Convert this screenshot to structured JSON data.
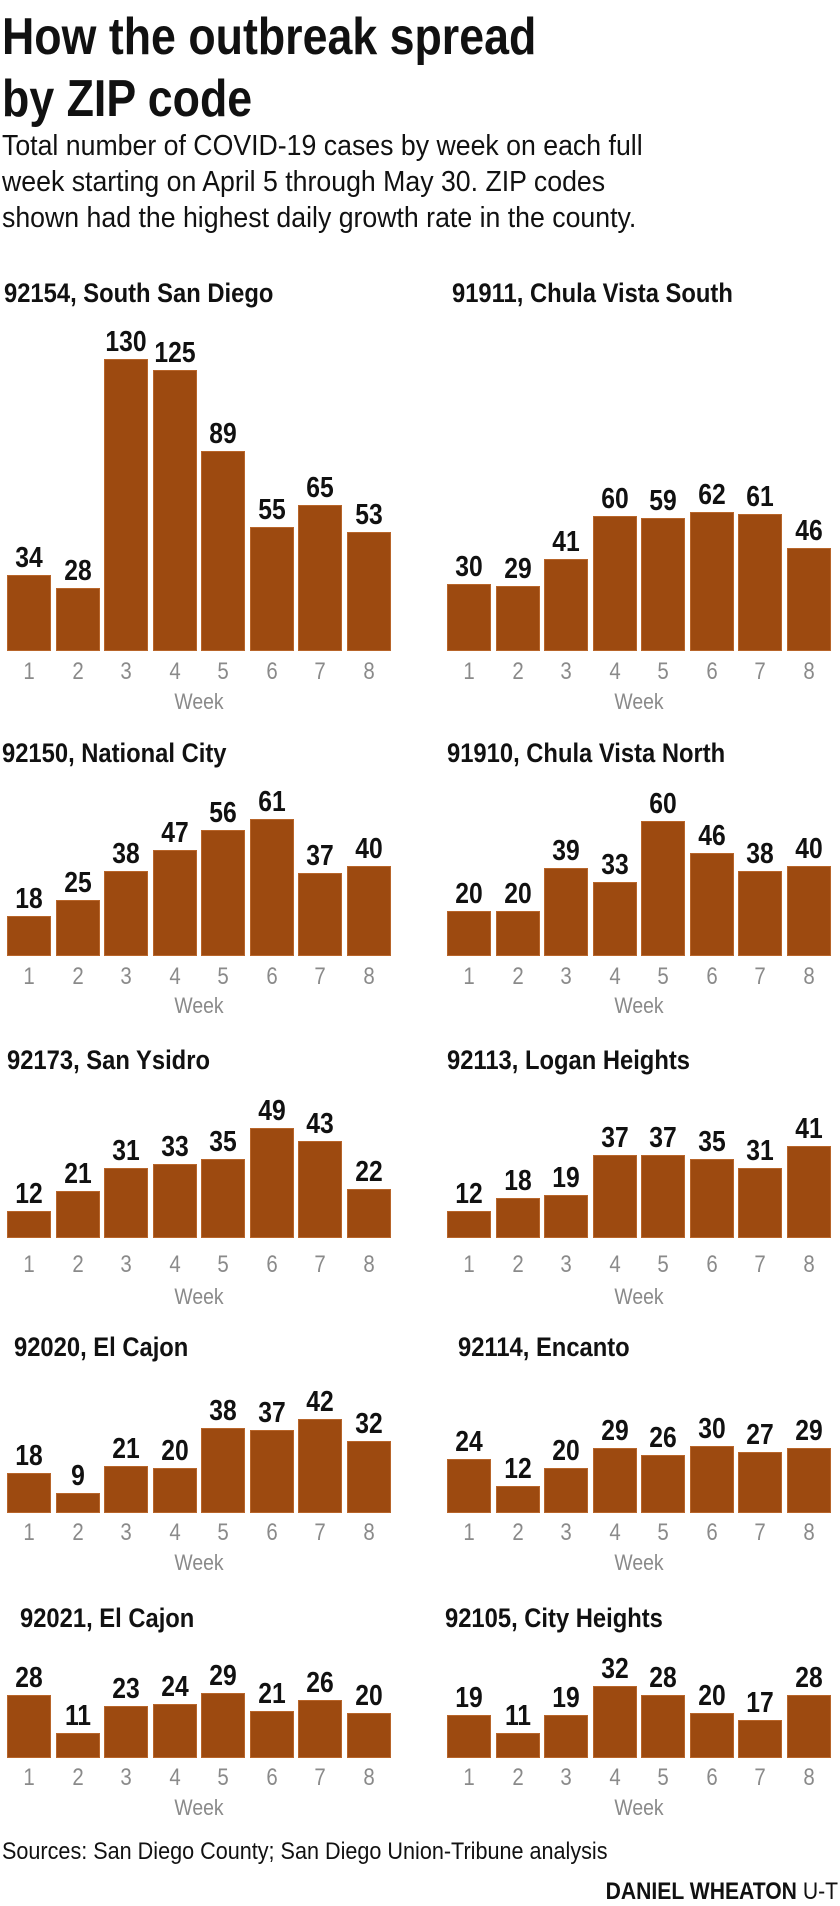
{
  "header": {
    "title_line1": "How the outbreak spread",
    "title_line2": "by ZIP code",
    "subtitle_lines": [
      "Total number of COVID-19 cases by week on each full",
      "week starting on April 5 through May 30. ZIP codes",
      "shown had the highest daily growth rate in the county."
    ]
  },
  "colors": {
    "bar": "#9d4a10",
    "tick": "#8a8a8a",
    "text": "#111111"
  },
  "chart_data": [
    {
      "type": "bar",
      "title": "92154, South San Diego",
      "xlabel": "Week",
      "categories": [
        "1",
        "2",
        "3",
        "4",
        "5",
        "6",
        "7",
        "8"
      ],
      "values": [
        34,
        28,
        130,
        125,
        89,
        55,
        65,
        53
      ]
    },
    {
      "type": "bar",
      "title": "91911, Chula Vista South",
      "xlabel": "Week",
      "categories": [
        "1",
        "2",
        "3",
        "4",
        "5",
        "6",
        "7",
        "8"
      ],
      "values": [
        30,
        29,
        41,
        60,
        59,
        62,
        61,
        46
      ]
    },
    {
      "type": "bar",
      "title": "92150, National City",
      "xlabel": "Week",
      "categories": [
        "1",
        "2",
        "3",
        "4",
        "5",
        "6",
        "7",
        "8"
      ],
      "values": [
        18,
        25,
        38,
        47,
        56,
        61,
        37,
        40
      ]
    },
    {
      "type": "bar",
      "title": "91910, Chula Vista North",
      "xlabel": "Week",
      "categories": [
        "1",
        "2",
        "3",
        "4",
        "5",
        "6",
        "7",
        "8"
      ],
      "values": [
        20,
        20,
        39,
        33,
        60,
        46,
        38,
        40
      ]
    },
    {
      "type": "bar",
      "title": "92173, San Ysidro",
      "xlabel": "Week",
      "categories": [
        "1",
        "2",
        "3",
        "4",
        "5",
        "6",
        "7",
        "8"
      ],
      "values": [
        12,
        21,
        31,
        33,
        35,
        49,
        43,
        22
      ]
    },
    {
      "type": "bar",
      "title": "92113, Logan Heights",
      "xlabel": "Week",
      "categories": [
        "1",
        "2",
        "3",
        "4",
        "5",
        "6",
        "7",
        "8"
      ],
      "values": [
        12,
        18,
        19,
        37,
        37,
        35,
        31,
        41
      ]
    },
    {
      "type": "bar",
      "title": "92020, El Cajon",
      "xlabel": "Week",
      "categories": [
        "1",
        "2",
        "3",
        "4",
        "5",
        "6",
        "7",
        "8"
      ],
      "values": [
        18,
        9,
        21,
        20,
        38,
        37,
        42,
        32
      ]
    },
    {
      "type": "bar",
      "title": "92114, Encanto",
      "xlabel": "Week",
      "categories": [
        "1",
        "2",
        "3",
        "4",
        "5",
        "6",
        "7",
        "8"
      ],
      "values": [
        24,
        12,
        20,
        29,
        26,
        30,
        27,
        29
      ]
    },
    {
      "type": "bar",
      "title": "92021, El Cajon",
      "xlabel": "Week",
      "categories": [
        "1",
        "2",
        "3",
        "4",
        "5",
        "6",
        "7",
        "8"
      ],
      "values": [
        28,
        11,
        23,
        24,
        29,
        21,
        26,
        20
      ]
    },
    {
      "type": "bar",
      "title": "92105, City Heights",
      "xlabel": "Week",
      "categories": [
        "1",
        "2",
        "3",
        "4",
        "5",
        "6",
        "7",
        "8"
      ],
      "values": [
        19,
        11,
        19,
        32,
        28,
        20,
        17,
        28
      ]
    }
  ],
  "footer": {
    "source": "Sources: San Diego County; San Diego Union-Tribune analysis",
    "byline_name": "DANIEL WHEATON",
    "byline_org": "U-T"
  }
}
